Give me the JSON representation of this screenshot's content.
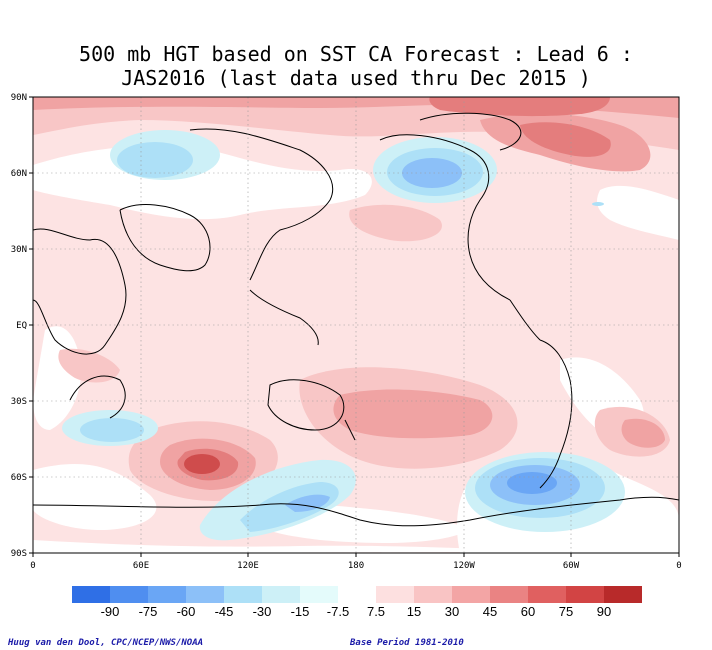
{
  "title": {
    "line1": "500 mb HGT based on SST CA Forecast : Lead 6 :",
    "line2": "JAS2016 (last data used thru Dec 2015 )"
  },
  "axes": {
    "lat_labels": [
      "90N",
      "60N",
      "30N",
      "EQ",
      "30S",
      "60S",
      "90S"
    ],
    "lon_labels": [
      "0",
      "60E",
      "120E",
      "180",
      "120W",
      "60W",
      "0"
    ]
  },
  "colorbar": {
    "labels": [
      "-90",
      "-75",
      "-60",
      "-45",
      "-30",
      "-15",
      "-7.5",
      "7.5",
      "15",
      "30",
      "45",
      "60",
      "75",
      "90"
    ],
    "colors": [
      "#2f6fe6",
      "#4f8ef0",
      "#6aa6f5",
      "#8cc0f8",
      "#ade0f7",
      "#cdf0f7",
      "#e4fbfb",
      "#ffffff",
      "#fde0e0",
      "#f9c4c4",
      "#f3a5a5",
      "#ea8383",
      "#e06060",
      "#d24444",
      "#b82a2a"
    ]
  },
  "footer": {
    "left": "Huug van den Dool, CPC/NCEP/NWS/NOAA",
    "right": "Base Period 1981-2010"
  }
}
